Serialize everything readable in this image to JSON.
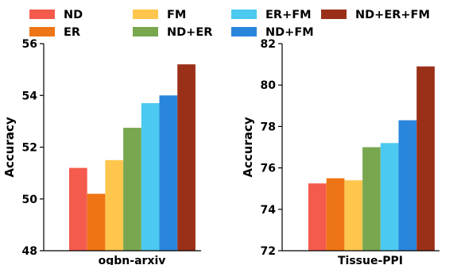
{
  "chart_data": [
    {
      "type": "bar",
      "categories": [
        "ogbn-arxiv"
      ],
      "ylabel": "Accuracy",
      "ylim": [
        48,
        56
      ],
      "yticks": [
        48,
        50,
        52,
        54,
        56
      ],
      "grid": false,
      "legend": "top",
      "series": [
        {
          "name": "ND",
          "values": [
            51.2
          ]
        },
        {
          "name": "ER",
          "values": [
            50.2
          ]
        },
        {
          "name": "FM",
          "values": [
            51.5
          ]
        },
        {
          "name": "ND+ER",
          "values": [
            52.75
          ]
        },
        {
          "name": "ER+FM",
          "values": [
            53.7
          ]
        },
        {
          "name": "ND+FM",
          "values": [
            54.0
          ]
        },
        {
          "name": "ND+ER+FM",
          "values": [
            55.2
          ]
        }
      ]
    },
    {
      "type": "bar",
      "categories": [
        "Tissue-PPI"
      ],
      "ylabel": "Accuracy",
      "ylim": [
        72,
        82
      ],
      "yticks": [
        72,
        74,
        76,
        78,
        80,
        82
      ],
      "grid": false,
      "legend": "top",
      "series": [
        {
          "name": "ND",
          "values": [
            75.25
          ]
        },
        {
          "name": "ER",
          "values": [
            75.5
          ]
        },
        {
          "name": "FM",
          "values": [
            75.4
          ]
        },
        {
          "name": "ND+ER",
          "values": [
            77.0
          ]
        },
        {
          "name": "ER+FM",
          "values": [
            77.2
          ]
        },
        {
          "name": "ND+FM",
          "values": [
            78.3
          ]
        },
        {
          "name": "ND+ER+FM",
          "values": [
            80.9
          ]
        }
      ]
    }
  ],
  "series_colors": {
    "ND": "#f45b4d",
    "ER": "#ee7515",
    "FM": "#ffc64d",
    "ND+ER": "#78a74f",
    "ER+FM": "#4cc9f0",
    "ND+FM": "#2a85dc",
    "ND+ER+FM": "#9b3018"
  }
}
